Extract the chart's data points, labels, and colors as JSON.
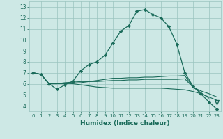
{
  "title": "",
  "xlabel": "Humidex (Indice chaleur)",
  "ylabel": "",
  "xlim": [
    -0.5,
    23.5
  ],
  "ylim": [
    3.5,
    13.5
  ],
  "xticks": [
    0,
    1,
    2,
    3,
    4,
    5,
    6,
    7,
    8,
    9,
    10,
    11,
    12,
    13,
    14,
    15,
    16,
    17,
    18,
    19,
    20,
    21,
    22,
    23
  ],
  "yticks": [
    4,
    5,
    6,
    7,
    8,
    9,
    10,
    11,
    12,
    13
  ],
  "bg_color": "#cde8e5",
  "grid_color": "#9ac4bf",
  "line_color": "#1a6b5a",
  "series1_x": [
    0,
    1,
    2,
    3,
    4,
    5,
    6,
    7,
    8,
    9,
    10,
    11,
    12,
    13,
    14,
    15,
    16,
    17,
    18,
    19,
    20,
    21,
    22,
    23
  ],
  "series1_y": [
    7.0,
    6.85,
    6.0,
    5.5,
    5.9,
    6.25,
    7.2,
    7.75,
    8.0,
    8.6,
    9.7,
    10.8,
    11.3,
    12.6,
    12.75,
    12.3,
    12.0,
    11.2,
    9.6,
    7.0,
    5.8,
    5.1,
    4.35,
    3.7
  ],
  "series2_x": [
    0,
    1,
    2,
    3,
    4,
    5,
    6,
    7,
    8,
    9,
    10,
    11,
    12,
    13,
    14,
    15,
    16,
    17,
    18,
    19,
    20,
    21,
    22,
    23
  ],
  "series2_y": [
    7.0,
    6.85,
    6.0,
    6.0,
    6.0,
    6.05,
    6.1,
    6.2,
    6.3,
    6.4,
    6.5,
    6.5,
    6.55,
    6.55,
    6.6,
    6.6,
    6.65,
    6.7,
    6.7,
    6.75,
    5.7,
    5.35,
    5.1,
    4.8
  ],
  "series3_x": [
    0,
    1,
    2,
    3,
    4,
    5,
    6,
    7,
    8,
    9,
    10,
    11,
    12,
    13,
    14,
    15,
    16,
    17,
    18,
    19,
    20,
    21,
    22,
    23
  ],
  "series3_y": [
    7.0,
    6.85,
    6.0,
    6.0,
    6.05,
    6.0,
    5.9,
    5.8,
    5.7,
    5.65,
    5.6,
    5.6,
    5.6,
    5.6,
    5.6,
    5.6,
    5.6,
    5.55,
    5.5,
    5.45,
    5.3,
    5.1,
    4.8,
    4.5
  ],
  "series4_x": [
    0,
    1,
    2,
    3,
    4,
    5,
    6,
    7,
    8,
    9,
    10,
    11,
    12,
    13,
    14,
    15,
    16,
    17,
    18,
    19,
    20,
    21,
    22,
    23
  ],
  "series4_y": [
    7.0,
    6.85,
    6.0,
    6.0,
    6.1,
    6.15,
    6.2,
    6.2,
    6.2,
    6.25,
    6.3,
    6.3,
    6.35,
    6.35,
    6.4,
    6.4,
    6.4,
    6.4,
    6.4,
    6.45,
    5.7,
    5.2,
    4.7,
    4.3
  ]
}
